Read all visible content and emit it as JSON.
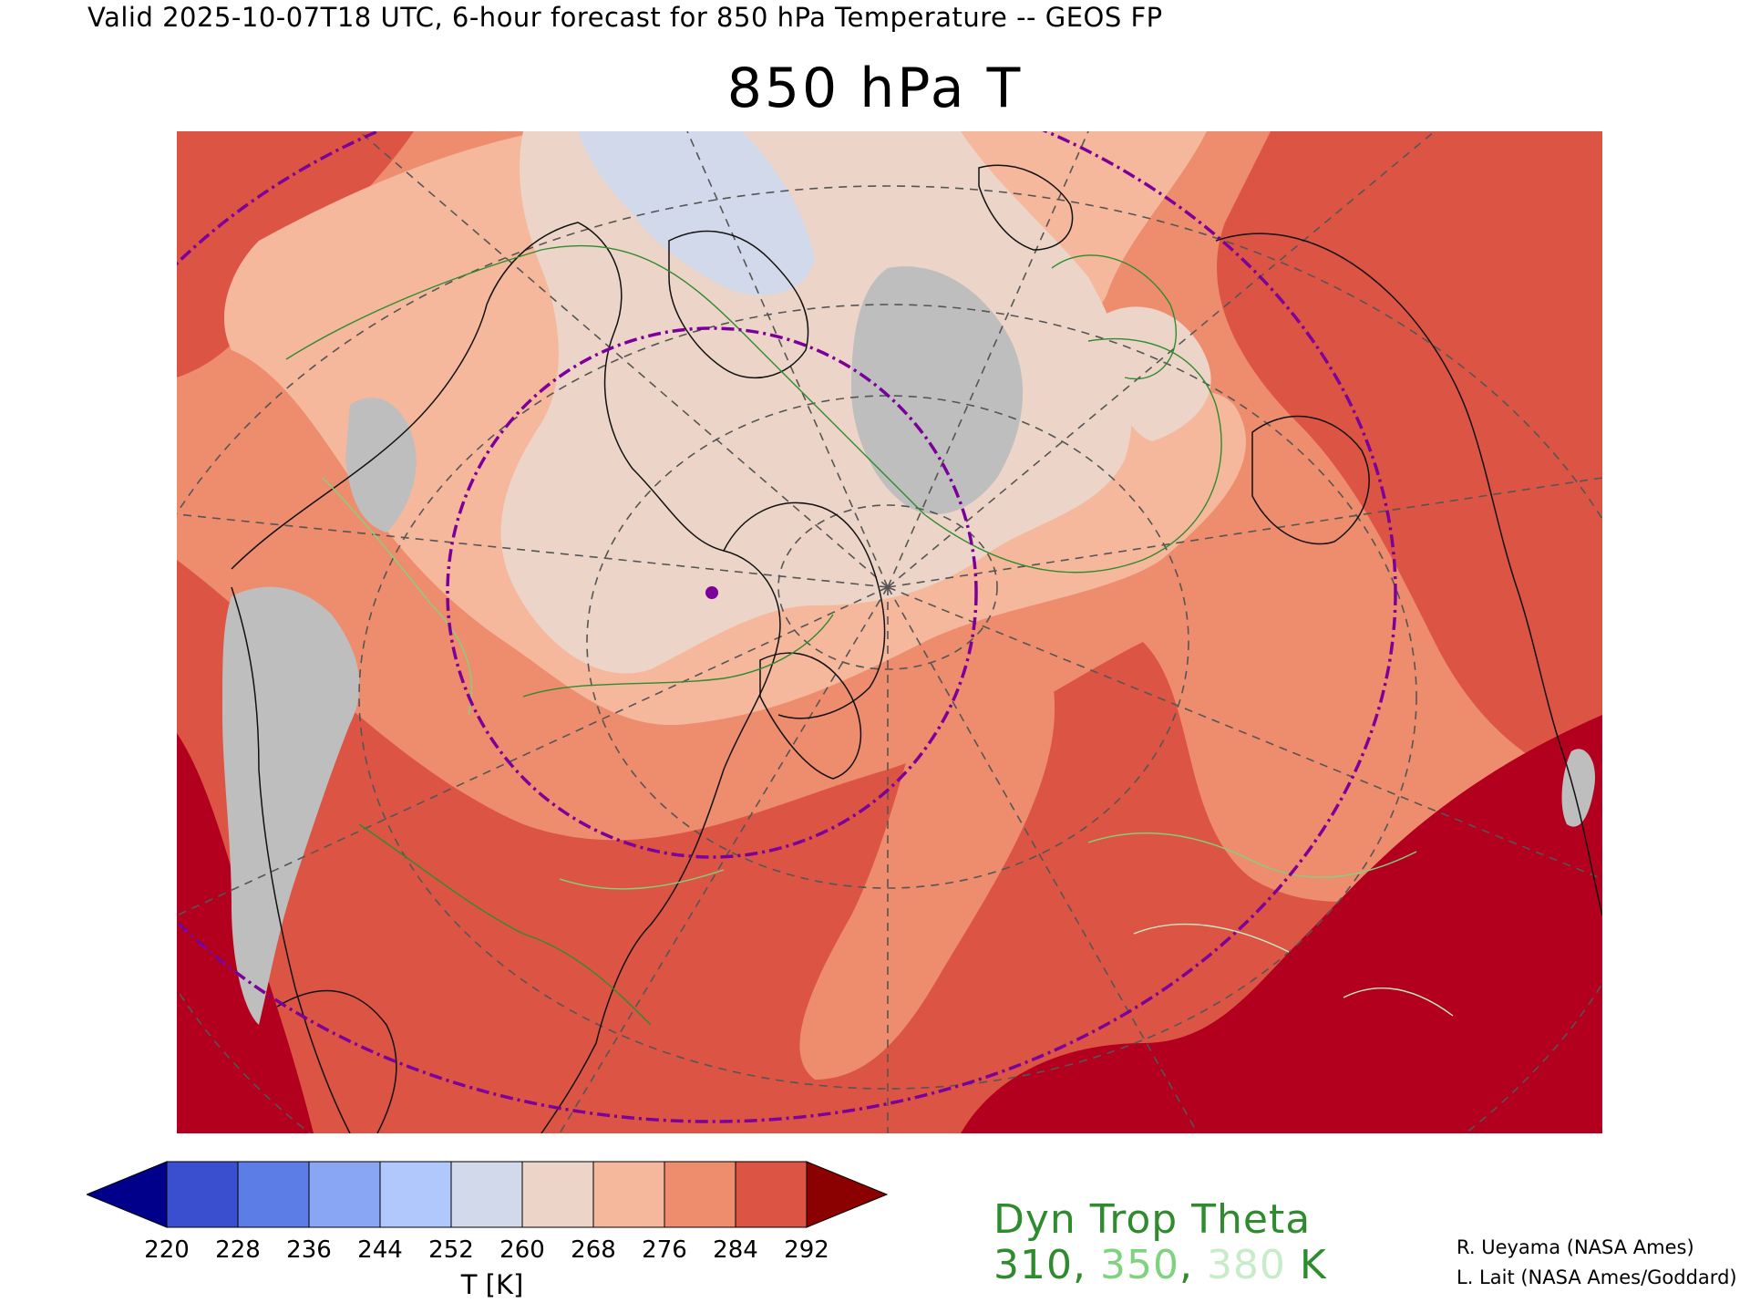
{
  "header": {
    "valid_line": "Valid 2025-10-07T18 UTC, 6-hour forecast for 850 hPa Temperature -- GEOS FP",
    "title": "850 hPa T"
  },
  "colorbar": {
    "ticks": [
      "220",
      "228",
      "236",
      "244",
      "252",
      "260",
      "268",
      "276",
      "284",
      "292"
    ],
    "label": "T [K]",
    "colors": [
      "#00008b",
      "#3a4fd0",
      "#5d7de6",
      "#88a6f4",
      "#b0c8fb",
      "#d2d9eb",
      "#ecd5c8",
      "#f5b89c",
      "#ee8c6e",
      "#dc5544",
      "#8b0000"
    ]
  },
  "dyn_trop": {
    "title": "Dyn Trop Theta",
    "value1": "310",
    "sep1": ", ",
    "value2": "350",
    "sep2": ", ",
    "value3": "380",
    "unit": " K",
    "colors": [
      "#2e8b2e",
      "#7fd37f",
      "#c8ecc8"
    ]
  },
  "credits": {
    "line1": "R. Ueyama (NASA Ames)",
    "line2": "L. Lait (NASA Ames/Goddard)"
  },
  "map": {
    "projection": "north polar stereographic",
    "field_colors": {
      "cold_gray": "#bebebe",
      "c252": "#d2d9eb",
      "c260": "#ecd5c8",
      "c268": "#f5b89c",
      "c276": "#ee8c6e",
      "c284": "#dc5544",
      "c292": "#b3001f"
    },
    "range_ring_color": "#7b0099"
  }
}
